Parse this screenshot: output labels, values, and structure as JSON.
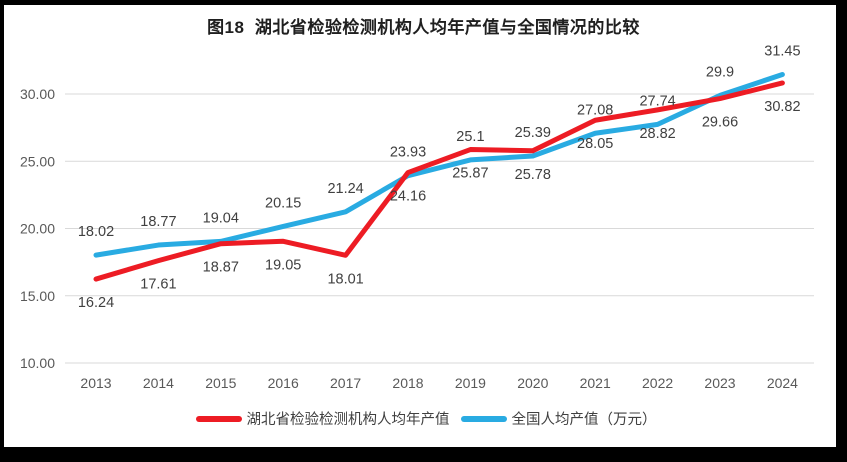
{
  "window": {
    "frame_color": "#000000",
    "paper_color": "#ffffff"
  },
  "chart_data": {
    "type": "line",
    "title": "图18  湖北省检验检测机构人均年产值与全国情况的比较",
    "categories": [
      "2013",
      "2014",
      "2015",
      "2016",
      "2017",
      "2018",
      "2019",
      "2020",
      "2021",
      "2022",
      "2023",
      "2024"
    ],
    "series": [
      {
        "key": "hubei",
        "name": "湖北省检验检测机构人均年产值",
        "color": "#ed1c24",
        "label_position": "below",
        "values": [
          16.24,
          17.61,
          18.87,
          19.05,
          18.01,
          24.16,
          25.87,
          25.78,
          28.05,
          28.82,
          29.66,
          30.82
        ]
      },
      {
        "key": "national",
        "name": "全国人均产值（万元）",
        "color": "#29abe2",
        "label_position": "above",
        "values": [
          18.02,
          18.77,
          19.04,
          20.15,
          21.24,
          23.93,
          25.1,
          25.39,
          27.08,
          27.74,
          29.9,
          31.45
        ]
      }
    ],
    "y_ticks": [
      "10.00",
      "15.00",
      "20.00",
      "25.00",
      "30.00"
    ],
    "ylim": [
      10,
      33
    ],
    "xlabel": "",
    "ylabel": "",
    "grid": true,
    "legend_position": "bottom",
    "colors": {
      "grid": "#d9d9d9",
      "axis_text": "#595959",
      "label_text": "#404040",
      "title_text": "#1f1f1f"
    }
  }
}
